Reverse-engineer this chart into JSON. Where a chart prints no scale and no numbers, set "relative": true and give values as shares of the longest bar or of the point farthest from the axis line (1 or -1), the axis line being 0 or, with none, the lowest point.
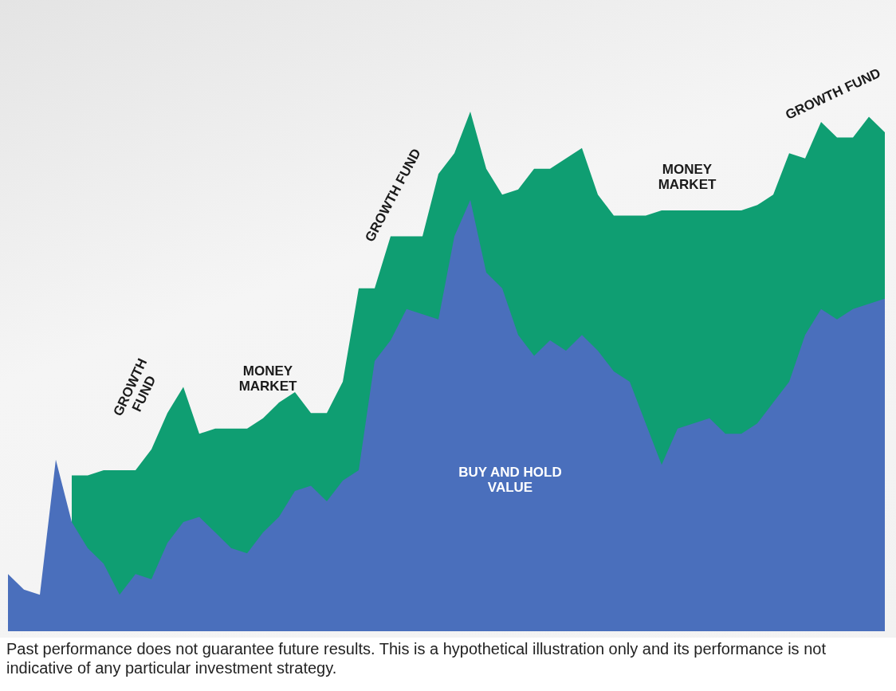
{
  "chart_data": {
    "type": "area",
    "relative": true,
    "marker": "none",
    "categories": [
      null,
      null,
      null,
      null,
      null,
      null,
      null,
      null,
      null,
      null,
      null,
      null,
      null,
      null,
      null,
      null,
      null,
      null,
      null,
      null,
      null,
      null,
      null,
      null,
      null,
      null,
      null,
      null,
      null,
      null,
      null,
      null,
      null,
      null,
      null,
      null,
      null,
      null,
      null,
      null,
      null,
      null,
      null,
      null,
      null,
      null,
      null,
      null,
      null,
      null,
      null,
      null,
      null,
      null,
      null,
      null
    ],
    "series": [
      {
        "color": "#0f9e72",
        "values": [
          null,
          null,
          null,
          null,
          0.3,
          0.3,
          0.31,
          0.31,
          0.31,
          0.35,
          0.42,
          0.47,
          0.38,
          0.39,
          0.39,
          0.39,
          0.41,
          0.44,
          0.46,
          0.42,
          0.42,
          0.48,
          0.66,
          0.66,
          0.76,
          0.76,
          0.76,
          0.88,
          0.92,
          1,
          0.89,
          0.84,
          0.85,
          0.89,
          0.89,
          0.91,
          0.93,
          0.84,
          0.8,
          0.8,
          0.8,
          0.81,
          0.81,
          0.81,
          0.81,
          0.81,
          0.81,
          0.82,
          0.84,
          0.92,
          0.91,
          0.98,
          0.95,
          0.95,
          0.99,
          0.96
        ]
      },
      {
        "color": "#4a6fbc",
        "values": [
          0.11,
          0.08,
          0.07,
          0.33,
          0.21,
          0.16,
          0.13,
          0.07,
          0.11,
          0.1,
          0.17,
          0.21,
          0.22,
          0.19,
          0.16,
          0.15,
          0.19,
          0.22,
          0.27,
          0.28,
          0.25,
          0.29,
          0.31,
          0.52,
          0.56,
          0.62,
          0.61,
          0.6,
          0.76,
          0.83,
          0.69,
          0.66,
          0.57,
          0.53,
          0.56,
          0.54,
          0.57,
          0.54,
          0.5,
          0.48,
          0.4,
          0.32,
          0.39,
          0.4,
          0.41,
          0.38,
          0.38,
          0.4,
          0.44,
          0.48,
          0.57,
          0.62,
          0.6,
          0.62,
          0.63,
          0.64
        ]
      }
    ],
    "annotations": [
      "GROWTH\nFUND",
      "MONEY\nMARKET",
      "GROWTH FUND",
      "MONEY\nMARKET",
      "GROWTH FUND",
      "BUY AND HOLD\nVALUE",
      "Past performance does not guarantee future results. This is a hypothetical illustration only and its performance is not indicative of any particular investment strategy."
    ]
  }
}
